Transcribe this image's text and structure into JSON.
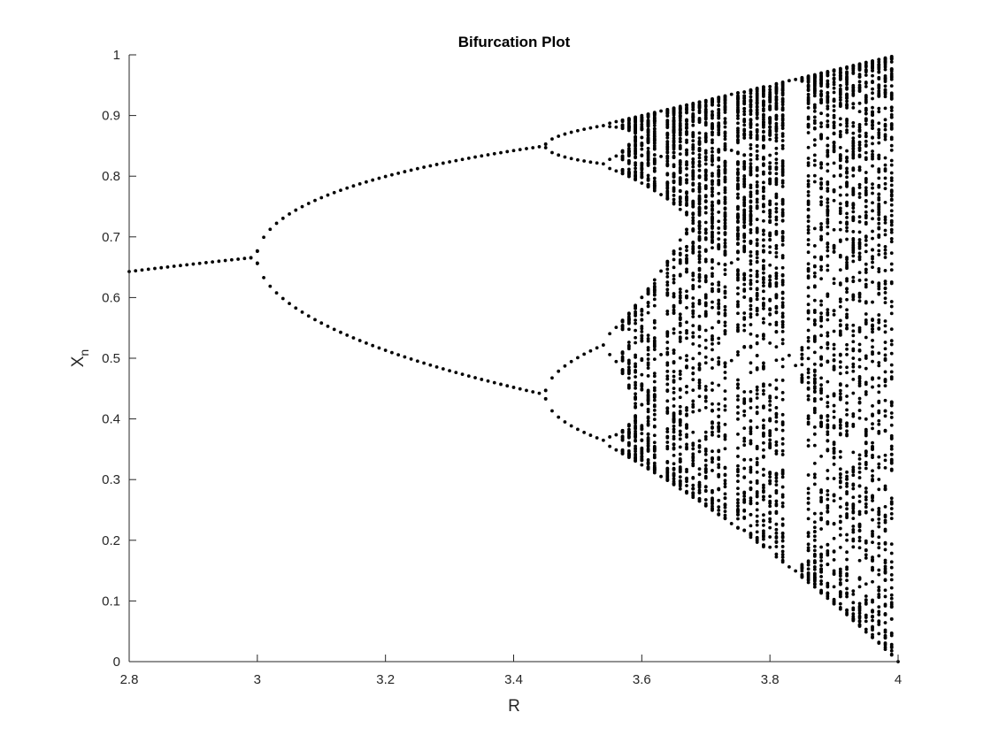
{
  "chart_data": {
    "type": "scatter",
    "title": "Bifurcation Plot",
    "xlabel": "R",
    "ylabel": "X",
    "ylabel_subscript": "n",
    "xlim": [
      2.8,
      4.0
    ],
    "ylim": [
      0,
      1
    ],
    "xticks": [
      "2.8",
      "3",
      "3.2",
      "3.4",
      "3.6",
      "3.8",
      "4"
    ],
    "yticks": [
      "0",
      "0.1",
      "0.2",
      "0.3",
      "0.4",
      "0.5",
      "0.6",
      "0.7",
      "0.8",
      "0.9",
      "1"
    ],
    "grid": false,
    "legend": "none",
    "marker_color": "#000000",
    "series": [
      {
        "map": "logistic",
        "r_step": 0.01,
        "r_start": 2.8,
        "r_end": 4.0,
        "iterations_discarded": 500,
        "points_per_r": 130
      }
    ]
  }
}
